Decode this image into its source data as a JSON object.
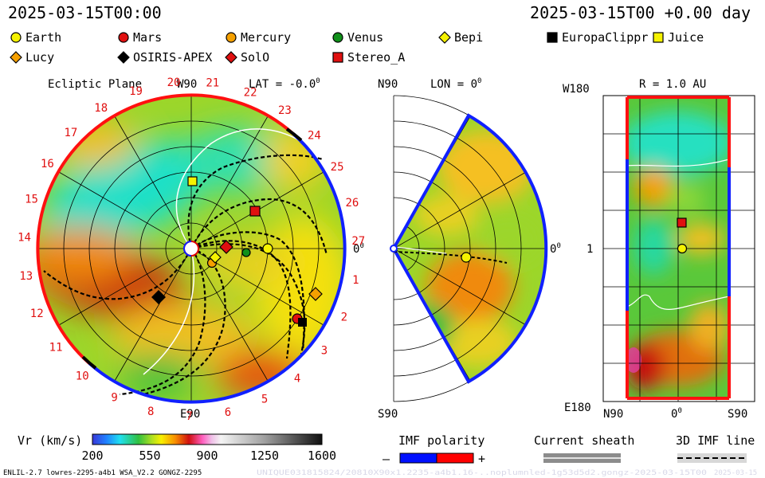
{
  "header": {
    "date_left": "2025-03-15T00:00",
    "date_right": "2025-03-15T00 +0.00 day"
  },
  "legend": [
    {
      "label": "Earth",
      "shape": "circle",
      "color": "#f5f200"
    },
    {
      "label": "Mars",
      "shape": "circle",
      "color": "#e01010"
    },
    {
      "label": "Mercury",
      "shape": "circle",
      "color": "#f5a000"
    },
    {
      "label": "Venus",
      "shape": "circle",
      "color": "#10901a"
    },
    {
      "label": "Bepi",
      "shape": "diamond",
      "color": "#f5f200"
    },
    {
      "label": "EuropaClippr",
      "shape": "square",
      "color": "#000000"
    },
    {
      "label": "Juice",
      "shape": "square",
      "color": "#f5f200"
    },
    {
      "label": "Lucy",
      "shape": "diamond",
      "color": "#f5a000"
    },
    {
      "label": "OSIRIS-APEX",
      "shape": "diamond",
      "color": "#000000"
    },
    {
      "label": "SolO",
      "shape": "diamond",
      "color": "#e01010"
    },
    {
      "label": "Stereo_A",
      "shape": "square",
      "color": "#e01010"
    }
  ],
  "panels": {
    "ecliptic": {
      "title": "Ecliptic Plane",
      "top_label": "W90",
      "lat_label": "LAT = -0.0",
      "lat_sup": "0",
      "right_label": "0",
      "right_sup": "0",
      "bottom_label": "E90",
      "carrington_labels": [
        "20",
        "21",
        "22",
        "23",
        "24",
        "25",
        "26",
        "27",
        "1",
        "2",
        "3",
        "4",
        "5",
        "6",
        "7",
        "8",
        "9",
        "10",
        "11",
        "12",
        "13",
        "14",
        "15",
        "16",
        "17",
        "18",
        "19"
      ]
    },
    "meridional": {
      "top_label": "N90",
      "lon_label": "LON = 0",
      "lon_sup": "0",
      "right_label": "0",
      "right_sup": "0",
      "bottom_label": "S90"
    },
    "sphere": {
      "top_left": "W180",
      "title": "R = 1.0 AU",
      "mid_left": "1",
      "bottom_left": "E180",
      "bottom_n": "N90",
      "bottom_mid": "0",
      "bottom_mid_sup": "0",
      "bottom_s": "S90"
    }
  },
  "chart_data": {
    "type": "heatmap",
    "quantity": "Vr (km/s)",
    "colorbar": {
      "label": "Vr (km/s)",
      "ticks": [
        200,
        550,
        900,
        1250,
        1600
      ],
      "range": [
        200,
        1600
      ]
    },
    "imf_polarity": {
      "label": "IMF polarity",
      "minus": "–",
      "plus": "+",
      "minus_color": "#0010ff",
      "plus_color": "#ff0000"
    },
    "current_sheath": {
      "label": "Current sheath"
    },
    "imf_line": {
      "label": "3D IMF line"
    }
  },
  "footer": {
    "left": "ENLIL-2.7 lowres-2295-a4b1 WSA_V2.2 GONGZ-2295",
    "right_faded": "UNIQUE031815824/20810X90x1.2235-a4b1.16-..noplumnled-1g53d5d2.gongz-2025-03-15T00",
    "right_date": "2025-03-15"
  }
}
